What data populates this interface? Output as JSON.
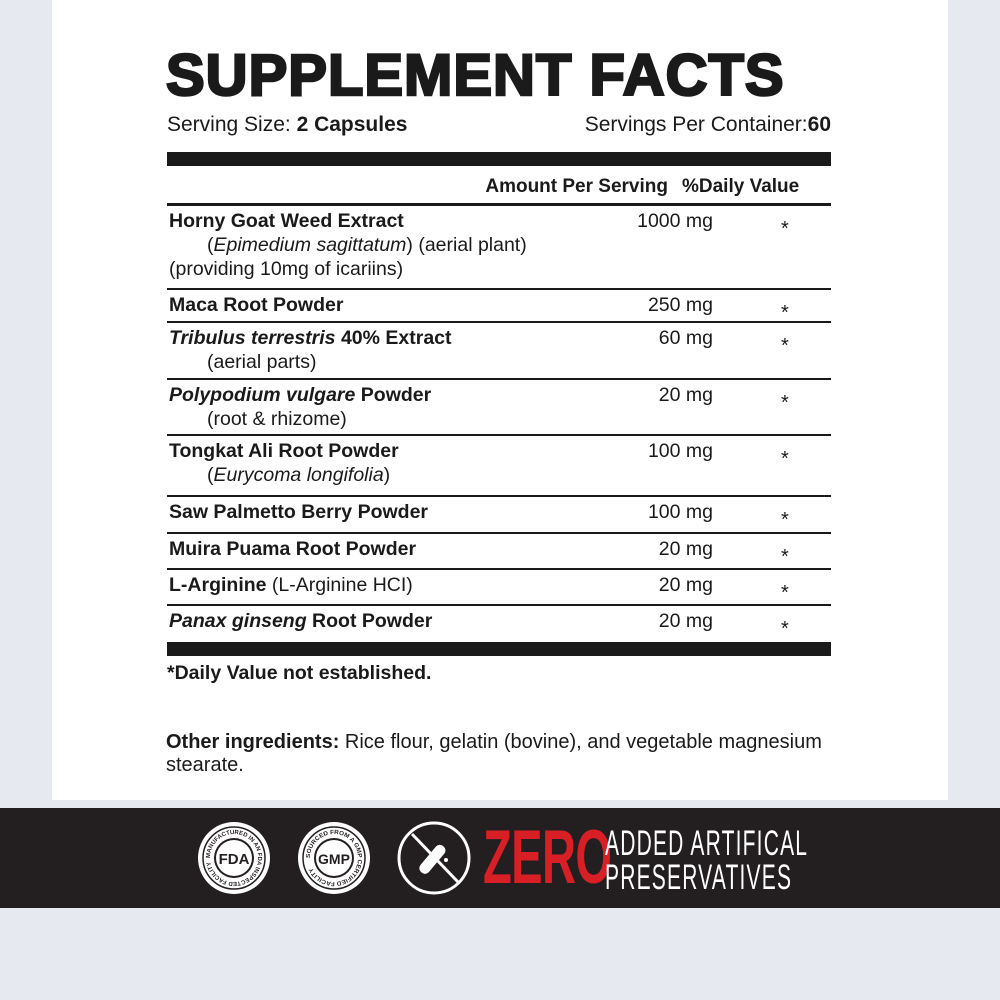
{
  "title": "SUPPLEMENT FACTS",
  "serving_size": {
    "label": "Serving Size: ",
    "value": "2 Capsules"
  },
  "servings_per_container": {
    "label": "Servings Per Container:",
    "value": "60"
  },
  "headers": {
    "amount": "Amount Per Serving",
    "dv": "%Daily Value"
  },
  "ingredients": [
    {
      "name": [
        {
          "t": "Horny Goat Weed Extract",
          "i": false
        }
      ],
      "sub": [
        [
          {
            "t": "(",
            "i": false
          },
          {
            "t": "Epimedium sagittatum",
            "i": true
          },
          {
            "t": ") (aerial plant)",
            "i": false
          }
        ],
        [
          {
            "t": "(providing 10mg of icariins)",
            "i": false
          }
        ]
      ],
      "amount": "1000 mg",
      "dv": "*"
    },
    {
      "name": [
        {
          "t": "Maca Root Powder",
          "i": false
        }
      ],
      "sub": [],
      "amount": "250 mg",
      "dv": "*"
    },
    {
      "name": [
        {
          "t": "Tribulus terrestris",
          "i": true
        },
        {
          "t": " 40% Extract",
          "i": false
        }
      ],
      "sub": [
        [
          {
            "t": "(aerial parts)",
            "i": false
          }
        ]
      ],
      "amount": "60 mg",
      "dv": "*"
    },
    {
      "name": [
        {
          "t": "Polypodium vulgare",
          "i": true
        },
        {
          "t": " Powder",
          "i": false
        }
      ],
      "sub": [
        [
          {
            "t": "(root & rhizome)",
            "i": false
          }
        ]
      ],
      "amount": "20 mg",
      "dv": "*"
    },
    {
      "name": [
        {
          "t": "Tongkat Ali Root Powder",
          "i": false
        }
      ],
      "sub": [
        [
          {
            "t": "(",
            "i": false
          },
          {
            "t": "Eurycoma longifolia",
            "i": true
          },
          {
            "t": ")",
            "i": false
          }
        ]
      ],
      "amount": "100 mg",
      "dv": "*"
    },
    {
      "name": [
        {
          "t": "Saw Palmetto Berry Powder",
          "i": false
        }
      ],
      "sub": [],
      "amount": "100 mg",
      "dv": "*"
    },
    {
      "name": [
        {
          "t": "Muira Puama Root Powder",
          "i": false
        }
      ],
      "sub": [],
      "amount": "20 mg",
      "dv": "*"
    },
    {
      "name": [
        {
          "t": "L-Arginine",
          "i": false
        },
        {
          "t": " (L-Arginine HCI)",
          "i": false,
          "plain": true
        }
      ],
      "sub": [],
      "amount": "20 mg",
      "dv": "*"
    },
    {
      "name": [
        {
          "t": "Panax ginseng",
          "i": true
        },
        {
          "t": " Root Powder",
          "i": false
        }
      ],
      "sub": [],
      "amount": "20 mg",
      "dv": "*"
    }
  ],
  "footnote": "*Daily Value not established.",
  "other_ingredients": {
    "label": "Other ingredients:",
    "text": " Rice flour, gelatin (bovine), and vegetable magnesium stearate."
  },
  "badges": {
    "fda": {
      "center": "FDA",
      "ring": "MANUFACTURED IN AN FDA INSPECTED FACILITY"
    },
    "gmp": {
      "center": "GMP",
      "ring": "SOURCED FROM A GMP CERTIFIED FACILITY"
    },
    "no_preservatives_icon": "crossed-test-tube-icon"
  },
  "claim": {
    "zero": "ZERO",
    "line1": "ADDED ARTIFICAL",
    "line2": "PRESERVATIVES"
  },
  "colors": {
    "accent": "#d81f26",
    "band": "#231f20",
    "background": "#e7e9f1"
  }
}
